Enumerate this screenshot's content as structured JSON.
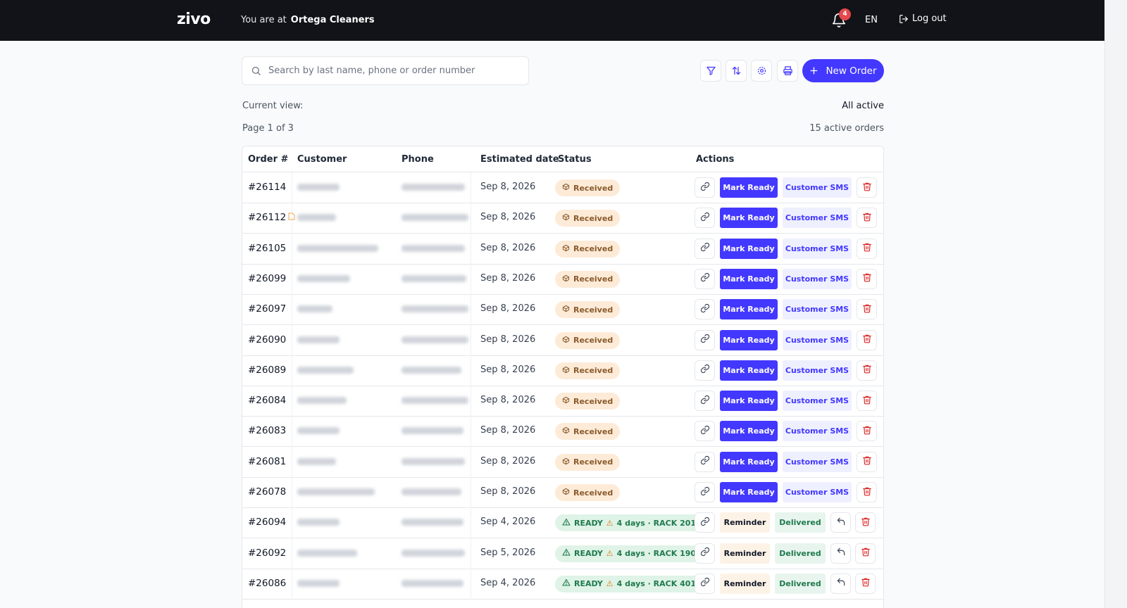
{
  "header": {
    "logo": "zivo",
    "location_prefix": "You are at",
    "location_name": "Ortega Cleaners",
    "notification_count": "4",
    "language": "EN",
    "logout_label": "Log out"
  },
  "toolbar": {
    "search_placeholder": "Search by last name, phone or order number",
    "new_order_label": "New Order",
    "tools": [
      "filter-icon",
      "sort-icon",
      "settings-icon",
      "print-icon"
    ]
  },
  "view": {
    "current_view_label": "Current view:",
    "current_view_value": "All active",
    "page_label": "Page 1 of 3",
    "count_label": "15 active orders"
  },
  "table": {
    "columns": [
      "Order #",
      "Customer",
      "Phone",
      "Estimated date",
      "Status",
      "Actions"
    ],
    "action_labels": {
      "mark_ready": "Mark Ready",
      "customer_sms": "Customer SMS",
      "reminder": "Reminder",
      "delivered": "Delivered"
    },
    "rows": [
      {
        "order": "#26114",
        "date": "Sep 8, 2026",
        "status": "Received",
        "type": "received",
        "note": false
      },
      {
        "order": "#26112",
        "date": "Sep 8, 2026",
        "status": "Received",
        "type": "received",
        "note": true
      },
      {
        "order": "#26105",
        "date": "Sep 8, 2026",
        "status": "Received",
        "type": "received",
        "note": false
      },
      {
        "order": "#26099",
        "date": "Sep 8, 2026",
        "status": "Received",
        "type": "received",
        "note": false
      },
      {
        "order": "#26097",
        "date": "Sep 8, 2026",
        "status": "Received",
        "type": "received",
        "note": false
      },
      {
        "order": "#26090",
        "date": "Sep 8, 2026",
        "status": "Received",
        "type": "received",
        "note": false
      },
      {
        "order": "#26089",
        "date": "Sep 8, 2026",
        "status": "Received",
        "type": "received",
        "note": false
      },
      {
        "order": "#26084",
        "date": "Sep 8, 2026",
        "status": "Received",
        "type": "received",
        "note": false
      },
      {
        "order": "#26083",
        "date": "Sep 8, 2026",
        "status": "Received",
        "type": "received",
        "note": false
      },
      {
        "order": "#26081",
        "date": "Sep 8, 2026",
        "status": "Received",
        "type": "received",
        "note": false
      },
      {
        "order": "#26078",
        "date": "Sep 8, 2026",
        "status": "Received",
        "type": "received",
        "note": false
      },
      {
        "order": "#26094",
        "date": "Sep 4, 2026",
        "status": "READY",
        "extra": "4 days · RACK 201",
        "type": "ready",
        "note": false
      },
      {
        "order": "#26092",
        "date": "Sep 5, 2026",
        "status": "READY",
        "extra": "4 days · RACK 190",
        "type": "ready",
        "note": false
      },
      {
        "order": "#26086",
        "date": "Sep 4, 2026",
        "status": "READY",
        "extra": "4 days · RACK 401",
        "type": "ready",
        "note": false
      }
    ]
  },
  "colors": {
    "primary": "#4338ff",
    "topbar": "#111318",
    "received_bg": "#fdebd8",
    "ready_bg": "#dff3e7",
    "danger": "#dc2626"
  }
}
